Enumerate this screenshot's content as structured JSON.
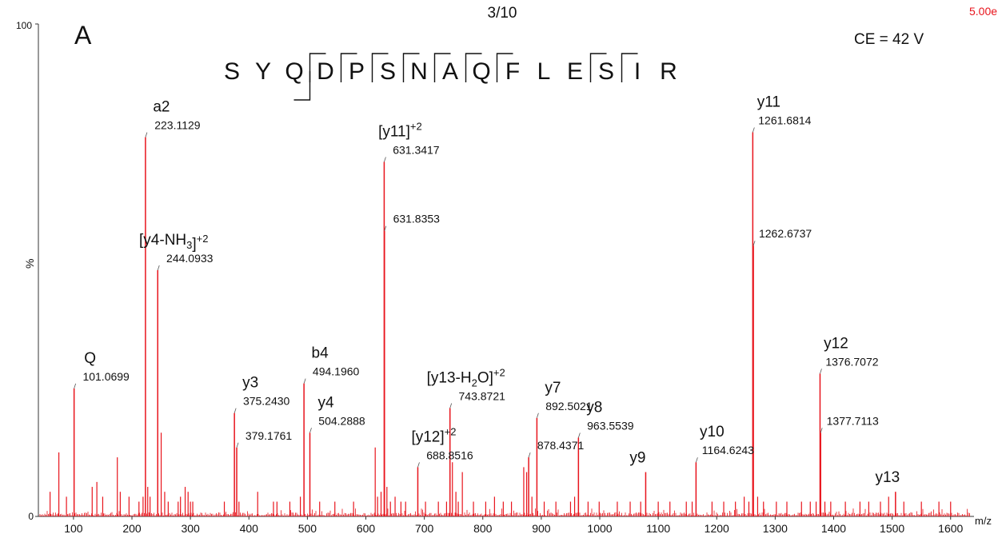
{
  "header": {
    "panel": "A",
    "scan_fraction": "3/10",
    "intensity_label": "5.00e",
    "collision_energy": "CE = 42 V"
  },
  "sequence": {
    "residues": [
      "S",
      "Y",
      "Q",
      "D",
      "P",
      "S",
      "N",
      "A",
      "Q",
      "F",
      "L",
      "E",
      "S",
      "I",
      "R"
    ],
    "n_term_breaks_after": [
      2
    ],
    "c_term_breaks_before": [
      3,
      4,
      5,
      6,
      7,
      8,
      9,
      12,
      13
    ]
  },
  "chart_data": {
    "type": "bar",
    "xlabel": "m/z",
    "ylabel": "%",
    "xlim": [
      40,
      1640
    ],
    "ylim": [
      0,
      100
    ],
    "x_ticks": [
      100,
      200,
      300,
      400,
      500,
      600,
      700,
      800,
      900,
      1000,
      1100,
      1200,
      1300,
      1400,
      1500,
      1600
    ],
    "y_ticks": [
      0,
      100
    ],
    "color": "#e8141c",
    "labeled_peaks": [
      {
        "mz": 101.0699,
        "intensity": 26,
        "ion": "Q",
        "mz_label": "101.0699"
      },
      {
        "mz": 223.1129,
        "intensity": 77,
        "ion": "a2",
        "mz_label": "223.1129"
      },
      {
        "mz": 244.0933,
        "intensity": 50,
        "ion": "[y4-NH3]+2",
        "mz_label": "244.0933"
      },
      {
        "mz": 375.243,
        "intensity": 21,
        "ion": "y3",
        "mz_label": "375.2430"
      },
      {
        "mz": 379.1761,
        "intensity": 14,
        "ion": "",
        "mz_label": "379.1761"
      },
      {
        "mz": 494.196,
        "intensity": 27,
        "ion": "b4",
        "mz_label": "494.1960"
      },
      {
        "mz": 504.2888,
        "intensity": 17,
        "ion": "y4",
        "mz_label": "504.2888"
      },
      {
        "mz": 631.3417,
        "intensity": 72,
        "ion": "[y11]+2",
        "mz_label": "631.3417"
      },
      {
        "mz": 631.8353,
        "intensity": 58,
        "ion": "",
        "mz_label": "631.8353"
      },
      {
        "mz": 688.8516,
        "intensity": 10,
        "ion": "[y12]+2",
        "mz_label": "688.8516"
      },
      {
        "mz": 743.8721,
        "intensity": 22,
        "ion": "[y13-H2O]+2",
        "mz_label": "743.8721"
      },
      {
        "mz": 878.4371,
        "intensity": 12,
        "ion": "",
        "mz_label": "878.4371"
      },
      {
        "mz": 892.5021,
        "intensity": 20,
        "ion": "y7",
        "mz_label": "892.5021"
      },
      {
        "mz": 963.5539,
        "intensity": 16,
        "ion": "y8",
        "mz_label": "963.5539"
      },
      {
        "mz": 1078.56,
        "intensity": 9,
        "ion": "y9",
        "mz_label": ""
      },
      {
        "mz": 1164.6243,
        "intensity": 11,
        "ion": "y10",
        "mz_label": "1164.6243"
      },
      {
        "mz": 1261.6814,
        "intensity": 78,
        "ion": "y11",
        "mz_label": "1261.6814"
      },
      {
        "mz": 1262.6737,
        "intensity": 55,
        "ion": "",
        "mz_label": "1262.6737"
      },
      {
        "mz": 1376.7072,
        "intensity": 29,
        "ion": "y12",
        "mz_label": "1376.7072"
      },
      {
        "mz": 1377.7113,
        "intensity": 17,
        "ion": "",
        "mz_label": "1377.7113"
      },
      {
        "mz": 1505.76,
        "intensity": 5,
        "ion": "y13",
        "mz_label": ""
      }
    ],
    "minor_peaks": [
      [
        60,
        5
      ],
      [
        75,
        13
      ],
      [
        88,
        4
      ],
      [
        132,
        6
      ],
      [
        140,
        7
      ],
      [
        150,
        4
      ],
      [
        175,
        12
      ],
      [
        180,
        5
      ],
      [
        195,
        4
      ],
      [
        212,
        3
      ],
      [
        219,
        4
      ],
      [
        227,
        6
      ],
      [
        231,
        4
      ],
      [
        250,
        17
      ],
      [
        256,
        5
      ],
      [
        262,
        3
      ],
      [
        279,
        3
      ],
      [
        283,
        4
      ],
      [
        291,
        6
      ],
      [
        296,
        5
      ],
      [
        300,
        3
      ],
      [
        304,
        3
      ],
      [
        358,
        3
      ],
      [
        383,
        3
      ],
      [
        415,
        5
      ],
      [
        442,
        3
      ],
      [
        448,
        3
      ],
      [
        470,
        3
      ],
      [
        488,
        4
      ],
      [
        521,
        3
      ],
      [
        547,
        3
      ],
      [
        579,
        3
      ],
      [
        616,
        14
      ],
      [
        620,
        4
      ],
      [
        626,
        5
      ],
      [
        636,
        6
      ],
      [
        642,
        3
      ],
      [
        650,
        4
      ],
      [
        660,
        3
      ],
      [
        668,
        3
      ],
      [
        702,
        3
      ],
      [
        724,
        3
      ],
      [
        738,
        3
      ],
      [
        748,
        11
      ],
      [
        754,
        5
      ],
      [
        758,
        3
      ],
      [
        765,
        9
      ],
      [
        784,
        3
      ],
      [
        805,
        3
      ],
      [
        820,
        4
      ],
      [
        835,
        3
      ],
      [
        849,
        3
      ],
      [
        870,
        10
      ],
      [
        875,
        9
      ],
      [
        884,
        4
      ],
      [
        905,
        3
      ],
      [
        925,
        3
      ],
      [
        950,
        3
      ],
      [
        957,
        4
      ],
      [
        980,
        3
      ],
      [
        999,
        3
      ],
      [
        1030,
        3
      ],
      [
        1052,
        3
      ],
      [
        1070,
        3
      ],
      [
        1100,
        3
      ],
      [
        1120,
        3
      ],
      [
        1148,
        3
      ],
      [
        1158,
        3
      ],
      [
        1192,
        3
      ],
      [
        1212,
        3
      ],
      [
        1232,
        3
      ],
      [
        1247,
        4
      ],
      [
        1255,
        3
      ],
      [
        1270,
        4
      ],
      [
        1280,
        3
      ],
      [
        1302,
        3
      ],
      [
        1320,
        3
      ],
      [
        1345,
        3
      ],
      [
        1360,
        3
      ],
      [
        1370,
        3
      ],
      [
        1385,
        3
      ],
      [
        1395,
        3
      ],
      [
        1420,
        3
      ],
      [
        1445,
        3
      ],
      [
        1460,
        3
      ],
      [
        1480,
        3
      ],
      [
        1494,
        4
      ],
      [
        1520,
        3
      ],
      [
        1550,
        3
      ],
      [
        1580,
        3
      ],
      [
        1600,
        3
      ]
    ]
  }
}
